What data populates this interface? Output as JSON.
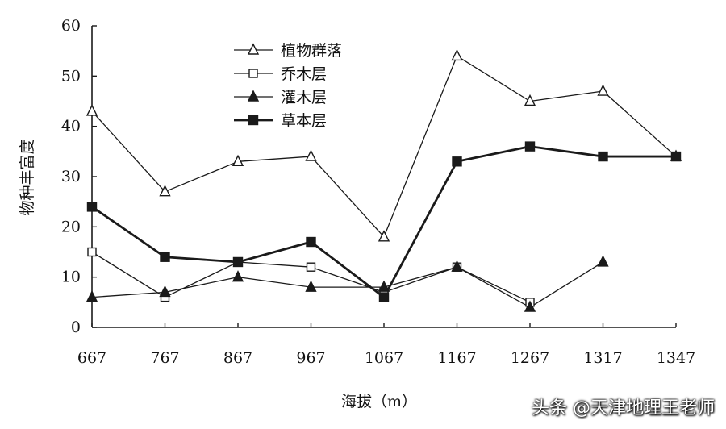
{
  "chart_data": {
    "type": "line",
    "categories": [
      "667",
      "767",
      "867",
      "967",
      "1067",
      "1167",
      "1267",
      "1317",
      "1347"
    ],
    "ylabel": "物种丰富度",
    "xlabel": "海拔（m）",
    "ylim": [
      0,
      60
    ],
    "yticks": [
      0,
      10,
      20,
      30,
      40,
      50,
      60
    ],
    "grid": false,
    "legend_position": "top-center",
    "series": [
      {
        "name": "植物群落",
        "marker": "triangle-open",
        "line_width": "thin",
        "values": [
          43,
          27,
          33,
          34,
          18,
          54,
          45,
          47,
          34
        ]
      },
      {
        "name": "乔木层",
        "marker": "square-open",
        "line_width": "thin",
        "values": [
          15,
          6,
          13,
          12,
          7,
          12,
          5,
          null,
          null
        ]
      },
      {
        "name": "灌木层",
        "marker": "triangle-filled",
        "line_width": "thin",
        "values": [
          6,
          7,
          10,
          8,
          8,
          12,
          4,
          13,
          null
        ]
      },
      {
        "name": "草本层",
        "marker": "square-filled",
        "line_width": "thick",
        "values": [
          24,
          14,
          13,
          17,
          6,
          33,
          36,
          34,
          34
        ]
      }
    ]
  },
  "watermark": "头条 @天津地理王老师",
  "colors": {
    "line": "#1a1a1a",
    "background": "#ffffff"
  }
}
